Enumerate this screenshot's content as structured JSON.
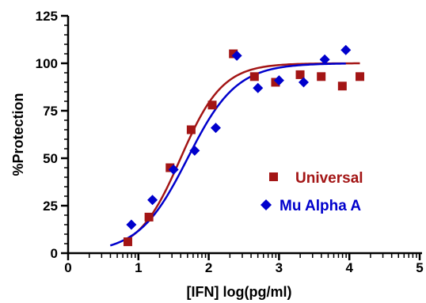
{
  "chart_data": {
    "type": "scatter",
    "xlabel": "[IFN] log(pg/ml)",
    "ylabel": "%Protection",
    "xlim": [
      0,
      5
    ],
    "ylim": [
      0,
      125
    ],
    "xticks": [
      "0",
      "1",
      "2",
      "3",
      "4",
      "5"
    ],
    "yticks": [
      "0",
      "25",
      "50",
      "75",
      "100",
      "125"
    ],
    "grid": false,
    "legend_position": "center-right",
    "series": [
      {
        "name": "Universal",
        "marker": "square",
        "color": "#A31515",
        "x": [
          0.85,
          1.15,
          1.45,
          1.75,
          2.05,
          2.35,
          2.65,
          2.95,
          3.3,
          3.6,
          3.9,
          4.15
        ],
        "y": [
          6,
          19,
          45,
          65,
          78,
          105,
          93,
          90,
          94,
          93,
          88,
          93
        ],
        "fit": {
          "bottom": 0,
          "top": 100,
          "logEC50": 1.6,
          "hillslope": 1.45,
          "xrange": [
            0.85,
            4.15
          ]
        }
      },
      {
        "name": "Mu Alpha A",
        "marker": "diamond",
        "color": "#0000CC",
        "x": [
          0.9,
          1.2,
          1.5,
          1.8,
          2.1,
          2.4,
          2.7,
          3.0,
          3.35,
          3.65,
          3.95
        ],
        "y": [
          15,
          28,
          44,
          54,
          66,
          104,
          87,
          91,
          90,
          102,
          107
        ],
        "fit": {
          "bottom": 0,
          "top": 100,
          "logEC50": 1.7,
          "hillslope": 1.25,
          "xrange": [
            0.6,
            3.95
          ]
        }
      }
    ]
  }
}
